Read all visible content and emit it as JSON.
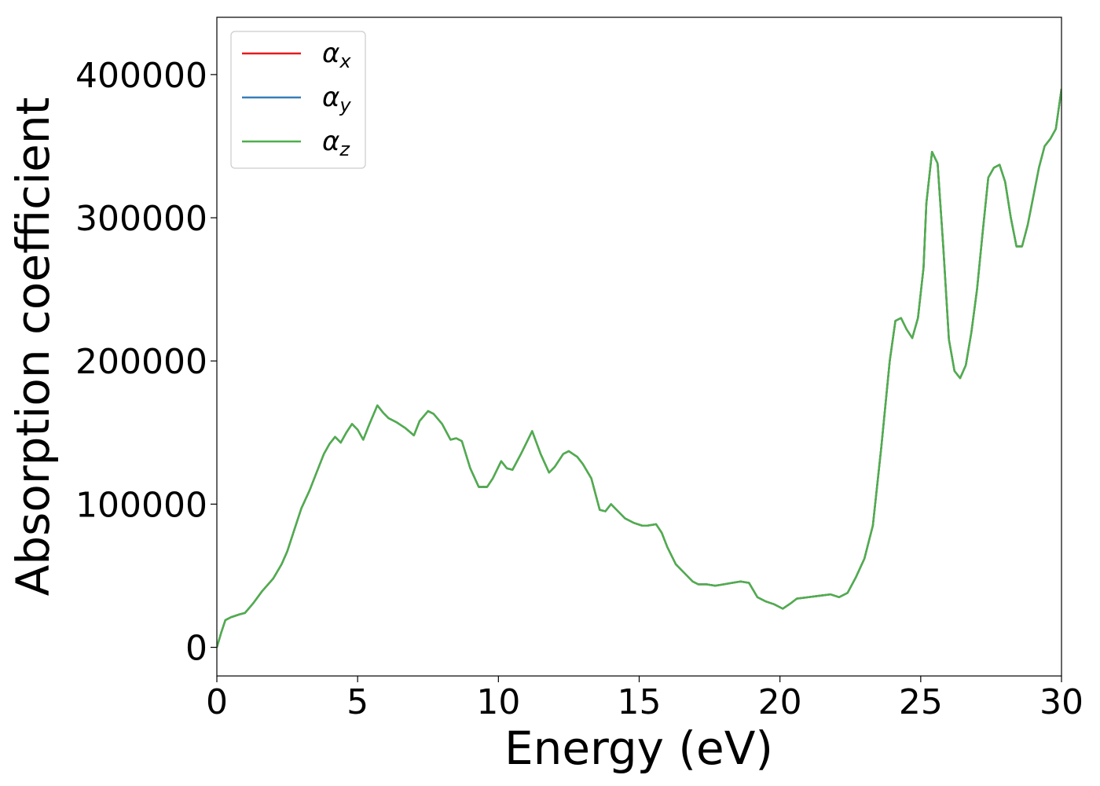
{
  "chart_data": {
    "type": "line",
    "xlabel": "Energy (eV)",
    "ylabel": "Absorption coefficient",
    "xlim": [
      0,
      30
    ],
    "ylim": [
      -20000,
      440000
    ],
    "xticks": [
      {
        "value": 0,
        "label": "0"
      },
      {
        "value": 5,
        "label": "5"
      },
      {
        "value": 10,
        "label": "10"
      },
      {
        "value": 15,
        "label": "15"
      },
      {
        "value": 20,
        "label": "20"
      },
      {
        "value": 25,
        "label": "25"
      },
      {
        "value": 30,
        "label": "30"
      }
    ],
    "yticks": [
      {
        "value": 0,
        "label": "0"
      },
      {
        "value": 100000,
        "label": "100000"
      },
      {
        "value": 200000,
        "label": "200000"
      },
      {
        "value": 300000,
        "label": "300000"
      },
      {
        "value": 400000,
        "label": "400000"
      }
    ],
    "grid": false,
    "legend_position": "top-left",
    "x": [
      0,
      0.15,
      0.3,
      0.5,
      0.8,
      1.0,
      1.3,
      1.6,
      2.0,
      2.3,
      2.5,
      2.8,
      3.0,
      3.3,
      3.5,
      3.8,
      4.0,
      4.2,
      4.4,
      4.6,
      4.8,
      5.0,
      5.2,
      5.4,
      5.7,
      5.9,
      6.1,
      6.4,
      6.7,
      7.0,
      7.2,
      7.5,
      7.7,
      8.0,
      8.3,
      8.5,
      8.7,
      9.0,
      9.3,
      9.6,
      9.8,
      10.1,
      10.3,
      10.5,
      10.8,
      11.2,
      11.5,
      11.8,
      12.0,
      12.3,
      12.5,
      12.8,
      13.0,
      13.3,
      13.6,
      13.8,
      14.0,
      14.2,
      14.5,
      14.8,
      15.1,
      15.3,
      15.6,
      15.8,
      16.0,
      16.3,
      16.6,
      16.9,
      17.1,
      17.4,
      17.7,
      18.0,
      18.3,
      18.6,
      18.9,
      19.2,
      19.5,
      19.8,
      20.1,
      20.4,
      20.6,
      21.0,
      21.4,
      21.8,
      22.1,
      22.4,
      22.7,
      23.0,
      23.3,
      23.6,
      23.9,
      24.1,
      24.3,
      24.5,
      24.7,
      24.9,
      25.1,
      25.2,
      25.4,
      25.6,
      25.8,
      26.0,
      26.2,
      26.4,
      26.6,
      26.8,
      27.0,
      27.2,
      27.4,
      27.6,
      27.8,
      28.0,
      28.2,
      28.4,
      28.6,
      28.8,
      29.0,
      29.2,
      29.4,
      29.6,
      29.8,
      30.0
    ],
    "series": [
      {
        "name": "α",
        "subscript": "x",
        "color": "#e41a1c",
        "values": [
          0,
          10000,
          19000,
          21000,
          23000,
          24000,
          31000,
          39000,
          48000,
          58000,
          67000,
          85000,
          97000,
          110000,
          120000,
          135000,
          142000,
          147000,
          143000,
          150000,
          156000,
          152000,
          145000,
          155000,
          169000,
          164000,
          160000,
          157000,
          153000,
          148000,
          158000,
          165000,
          163000,
          156000,
          145000,
          146000,
          144000,
          125000,
          112000,
          112000,
          118000,
          130000,
          125000,
          124000,
          135000,
          151000,
          135000,
          122000,
          126000,
          135000,
          137000,
          133000,
          128000,
          118000,
          96000,
          95000,
          100000,
          96000,
          90000,
          87000,
          85000,
          85000,
          86000,
          80000,
          70000,
          58000,
          52000,
          46000,
          44000,
          44000,
          43000,
          44000,
          45000,
          46000,
          45000,
          35000,
          32000,
          30000,
          27000,
          31000,
          34000,
          35000,
          36000,
          37000,
          35000,
          38000,
          49000,
          62000,
          85000,
          140000,
          200000,
          228000,
          230000,
          222000,
          216000,
          230000,
          265000,
          310000,
          346000,
          338000,
          280000,
          215000,
          193000,
          188000,
          197000,
          220000,
          250000,
          290000,
          328000,
          335000,
          337000,
          325000,
          300000,
          280000,
          280000,
          295000,
          315000,
          335000,
          350000,
          355000,
          362000,
          390000
        ]
      },
      {
        "name": "α",
        "subscript": "y",
        "color": "#377eb8",
        "values": [
          0,
          10000,
          19000,
          21000,
          23000,
          24000,
          31000,
          39000,
          48000,
          58000,
          67000,
          85000,
          97000,
          110000,
          120000,
          135000,
          142000,
          147000,
          143000,
          150000,
          156000,
          152000,
          145000,
          155000,
          169000,
          164000,
          160000,
          157000,
          153000,
          148000,
          158000,
          165000,
          163000,
          156000,
          145000,
          146000,
          144000,
          125000,
          112000,
          112000,
          118000,
          130000,
          125000,
          124000,
          135000,
          151000,
          135000,
          122000,
          126000,
          135000,
          137000,
          133000,
          128000,
          118000,
          96000,
          95000,
          100000,
          96000,
          90000,
          87000,
          85000,
          85000,
          86000,
          80000,
          70000,
          58000,
          52000,
          46000,
          44000,
          44000,
          43000,
          44000,
          45000,
          46000,
          45000,
          35000,
          32000,
          30000,
          27000,
          31000,
          34000,
          35000,
          36000,
          37000,
          35000,
          38000,
          49000,
          62000,
          85000,
          140000,
          200000,
          228000,
          230000,
          222000,
          216000,
          230000,
          265000,
          310000,
          346000,
          338000,
          280000,
          215000,
          193000,
          188000,
          197000,
          220000,
          250000,
          290000,
          328000,
          335000,
          337000,
          325000,
          300000,
          280000,
          280000,
          295000,
          315000,
          335000,
          350000,
          355000,
          362000,
          390000
        ]
      },
      {
        "name": "α",
        "subscript": "z",
        "color": "#4daf4a",
        "values": [
          0,
          10000,
          19000,
          21000,
          23000,
          24000,
          31000,
          39000,
          48000,
          58000,
          67000,
          85000,
          97000,
          110000,
          120000,
          135000,
          142000,
          147000,
          143000,
          150000,
          156000,
          152000,
          145000,
          155000,
          169000,
          164000,
          160000,
          157000,
          153000,
          148000,
          158000,
          165000,
          163000,
          156000,
          145000,
          146000,
          144000,
          125000,
          112000,
          112000,
          118000,
          130000,
          125000,
          124000,
          135000,
          151000,
          135000,
          122000,
          126000,
          135000,
          137000,
          133000,
          128000,
          118000,
          96000,
          95000,
          100000,
          96000,
          90000,
          87000,
          85000,
          85000,
          86000,
          80000,
          70000,
          58000,
          52000,
          46000,
          44000,
          44000,
          43000,
          44000,
          45000,
          46000,
          45000,
          35000,
          32000,
          30000,
          27000,
          31000,
          34000,
          35000,
          36000,
          37000,
          35000,
          38000,
          49000,
          62000,
          85000,
          140000,
          200000,
          228000,
          230000,
          222000,
          216000,
          230000,
          265000,
          310000,
          346000,
          338000,
          280000,
          215000,
          193000,
          188000,
          197000,
          220000,
          250000,
          290000,
          328000,
          335000,
          337000,
          325000,
          300000,
          280000,
          280000,
          295000,
          315000,
          335000,
          350000,
          355000,
          362000,
          390000
        ]
      }
    ]
  }
}
